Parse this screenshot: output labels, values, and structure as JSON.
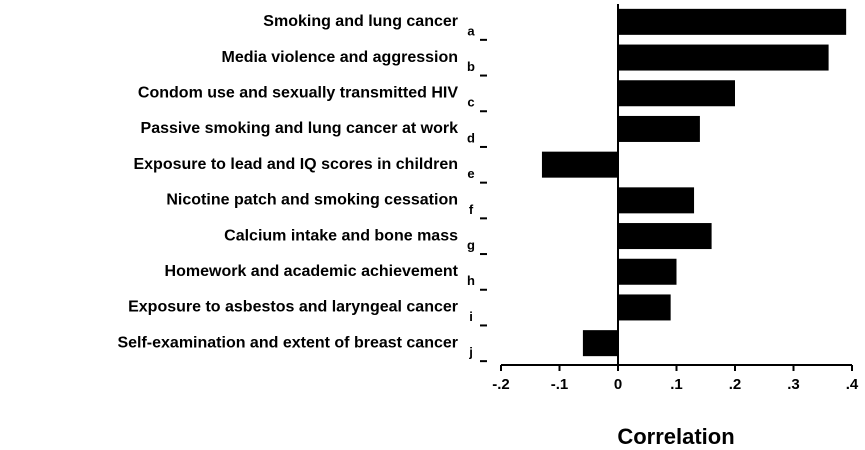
{
  "chart_data": {
    "type": "hbar",
    "x_label": "Correlation",
    "categories": [
      "Smoking and lung cancer",
      "Media violence and aggression",
      "Condom use and sexually transmitted HIV",
      "Passive smoking and lung cancer at work",
      "Exposure to lead and IQ scores in children",
      "Nicotine patch and smoking cessation",
      "Calcium intake and bone mass",
      "Homework and academic achievement",
      "Exposure to asbestos and laryngeal cancer",
      "Self-examination and extent of breast cancer"
    ],
    "letters": [
      "a",
      "b",
      "c",
      "d",
      "e",
      "f",
      "g",
      "h",
      "i",
      "j"
    ],
    "values": [
      0.39,
      0.36,
      0.2,
      0.14,
      -0.13,
      0.13,
      0.16,
      0.1,
      0.09,
      -0.06
    ],
    "color": "#000000",
    "xlim": [
      -0.2,
      0.4
    ],
    "xticks": [
      {
        "value": -0.2,
        "label": "-.2"
      },
      {
        "value": -0.1,
        "label": "-.1"
      },
      0,
      {
        "value": 0.1,
        "label": ".1"
      },
      {
        "value": 0.2,
        "label": ".2"
      },
      {
        "value": 0.3,
        "label": ".3"
      },
      {
        "value": 0.4,
        "label": ".4"
      }
    ],
    "grid": false
  }
}
